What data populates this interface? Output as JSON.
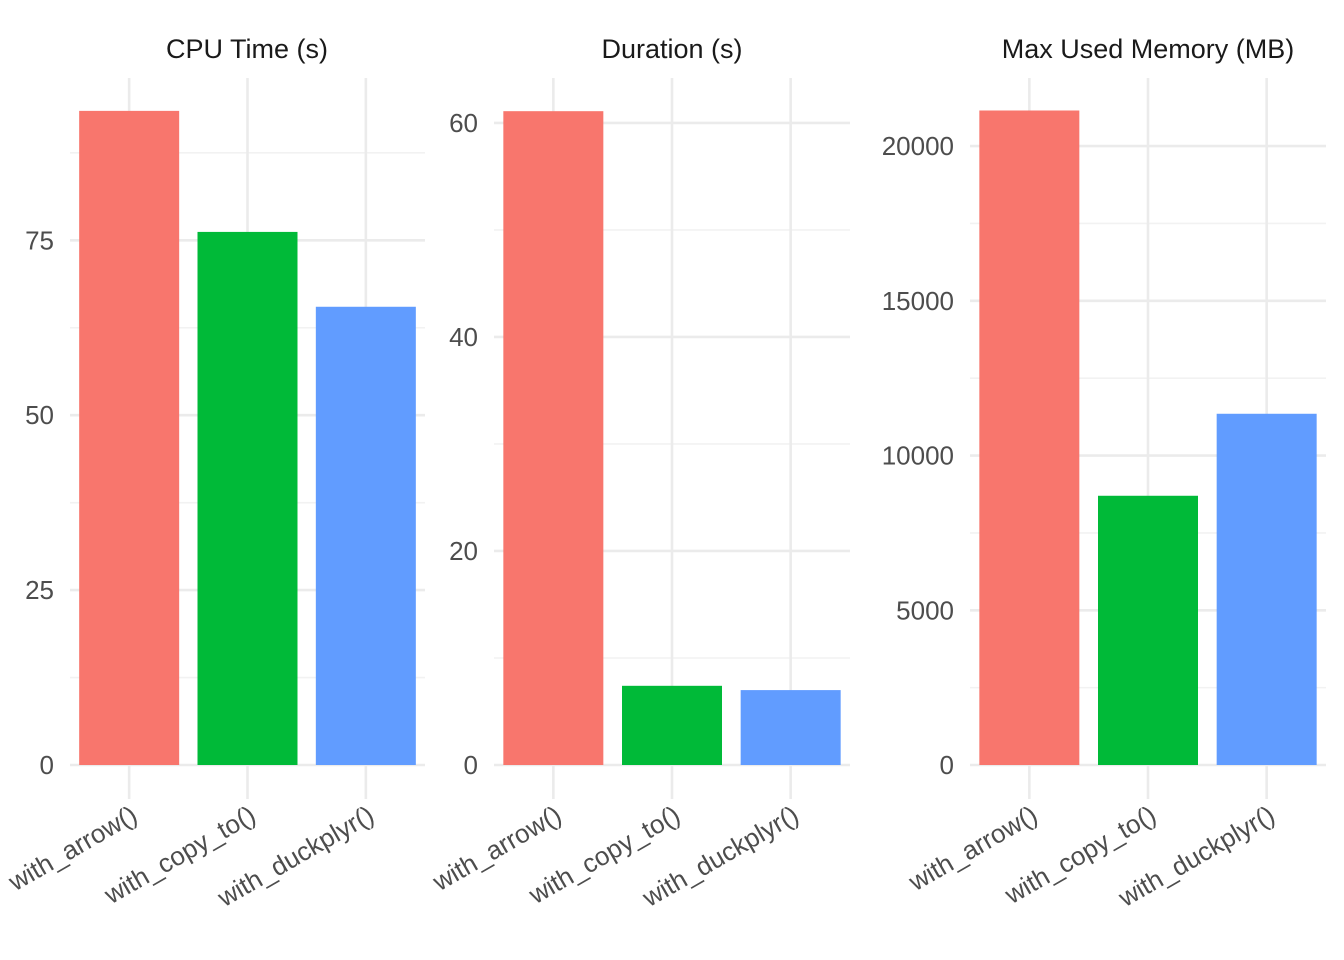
{
  "chart_data": [
    {
      "type": "bar",
      "title": "CPU Time (s)",
      "categories": [
        "with_arrow()",
        "with_copy_to()",
        "with_duckplyr()"
      ],
      "values": [
        93.5,
        76.2,
        65.5
      ],
      "colors": [
        "#F8766D",
        "#00BA38",
        "#619CFF"
      ],
      "ylim": [
        0,
        98.2
      ],
      "yticks": [
        0,
        25,
        50,
        75
      ],
      "ytick_labels": [
        "0",
        "25",
        "50",
        "75"
      ],
      "minor_yticks": [
        12.5,
        37.5,
        62.5,
        87.5
      ],
      "xlabel": "",
      "ylabel": "",
      "grid": true,
      "legend": "none"
    },
    {
      "type": "bar",
      "title": "Duration (s)",
      "categories": [
        "with_arrow()",
        "with_copy_to()",
        "with_duckplyr()"
      ],
      "values": [
        61.1,
        7.4,
        7.0
      ],
      "colors": [
        "#F8766D",
        "#00BA38",
        "#619CFF"
      ],
      "ylim": [
        0,
        64.2
      ],
      "yticks": [
        0,
        20,
        40,
        60
      ],
      "ytick_labels": [
        "0",
        "20",
        "40",
        "60"
      ],
      "minor_yticks": [
        10,
        30,
        50
      ],
      "xlabel": "",
      "ylabel": "",
      "grid": true,
      "legend": "none"
    },
    {
      "type": "bar",
      "title": "Max Used Memory (MB)",
      "categories": [
        "with_arrow()",
        "with_copy_to()",
        "with_duckplyr()"
      ],
      "values": [
        21150,
        8700,
        11350
      ],
      "colors": [
        "#F8766D",
        "#00BA38",
        "#619CFF"
      ],
      "ylim": [
        0,
        22200
      ],
      "yticks": [
        0,
        5000,
        10000,
        15000,
        20000
      ],
      "ytick_labels": [
        "0",
        "5000",
        "10000",
        "15000",
        "20000"
      ],
      "minor_yticks": [
        2500,
        7500,
        12500,
        17500
      ],
      "xlabel": "",
      "ylabel": "",
      "grid": true,
      "legend": "none"
    }
  ]
}
